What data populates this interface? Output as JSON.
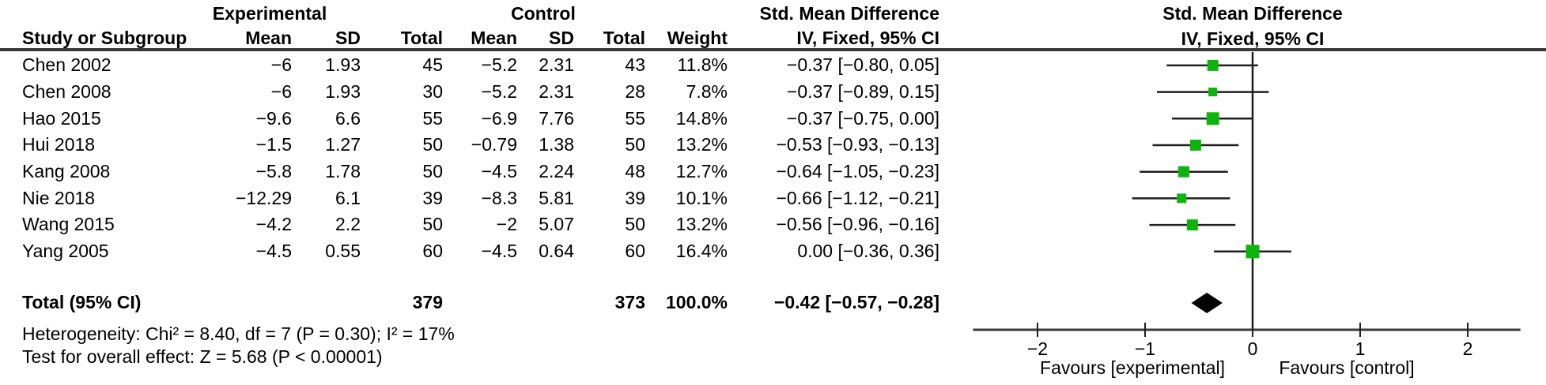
{
  "headers": {
    "experimental": "Experimental",
    "control": "Control",
    "smd_text_col": "Std. Mean Difference",
    "smd_plot_col": "Std. Mean Difference",
    "study": "Study or Subgroup",
    "mean": "Mean",
    "sd": "SD",
    "total": "Total",
    "mean2": "Mean",
    "sd2": "SD",
    "total2": "Total",
    "weight": "Weight",
    "ci_text_col": "IV, Fixed, 95% CI",
    "ci_plot_col": "IV, Fixed, 95% CI"
  },
  "colors": {
    "marker_green": "#0eb30e",
    "diamond_black": "#000000",
    "ci_line": "#1f1f1f",
    "axis_gray": "#3a3a3a"
  },
  "chart_data": {
    "type": "forest",
    "effect_measure": "Std. Mean Difference",
    "method": "IV, Fixed, 95% CI",
    "studies": [
      {
        "study": "Chen 2002",
        "exp_mean": "−6",
        "exp_sd": "1.93",
        "exp_total": "45",
        "ctl_mean": "−5.2",
        "ctl_sd": "2.31",
        "ctl_total": "43",
        "weight": "11.8%",
        "weight_pct": 11.8,
        "ci_label": "−0.37 [−0.80, 0.05]",
        "est": -0.37,
        "lo": -0.8,
        "hi": 0.05
      },
      {
        "study": "Chen 2008",
        "exp_mean": "−6",
        "exp_sd": "1.93",
        "exp_total": "30",
        "ctl_mean": "−5.2",
        "ctl_sd": "2.31",
        "ctl_total": "28",
        "weight": "7.8%",
        "weight_pct": 7.8,
        "ci_label": "−0.37 [−0.89, 0.15]",
        "est": -0.37,
        "lo": -0.89,
        "hi": 0.15
      },
      {
        "study": "Hao 2015",
        "exp_mean": "−9.6",
        "exp_sd": "6.6",
        "exp_total": "55",
        "ctl_mean": "−6.9",
        "ctl_sd": "7.76",
        "ctl_total": "55",
        "weight": "14.8%",
        "weight_pct": 14.8,
        "ci_label": "−0.37 [−0.75, 0.00]",
        "est": -0.37,
        "lo": -0.75,
        "hi": 0.0
      },
      {
        "study": "Hui 2018",
        "exp_mean": "−1.5",
        "exp_sd": "1.27",
        "exp_total": "50",
        "ctl_mean": "−0.79",
        "ctl_sd": "1.38",
        "ctl_total": "50",
        "weight": "13.2%",
        "weight_pct": 13.2,
        "ci_label": "−0.53 [−0.93, −0.13]",
        "est": -0.53,
        "lo": -0.93,
        "hi": -0.13
      },
      {
        "study": "Kang 2008",
        "exp_mean": "−5.8",
        "exp_sd": "1.78",
        "exp_total": "50",
        "ctl_mean": "−4.5",
        "ctl_sd": "2.24",
        "ctl_total": "48",
        "weight": "12.7%",
        "weight_pct": 12.7,
        "ci_label": "−0.64 [−1.05, −0.23]",
        "est": -0.64,
        "lo": -1.05,
        "hi": -0.23
      },
      {
        "study": "Nie 2018",
        "exp_mean": "−12.29",
        "exp_sd": "6.1",
        "exp_total": "39",
        "ctl_mean": "−8.3",
        "ctl_sd": "5.81",
        "ctl_total": "39",
        "weight": "10.1%",
        "weight_pct": 10.1,
        "ci_label": "−0.66 [−1.12, −0.21]",
        "est": -0.66,
        "lo": -1.12,
        "hi": -0.21
      },
      {
        "study": "Wang 2015",
        "exp_mean": "−4.2",
        "exp_sd": "2.2",
        "exp_total": "50",
        "ctl_mean": "−2",
        "ctl_sd": "5.07",
        "ctl_total": "50",
        "weight": "13.2%",
        "weight_pct": 13.2,
        "ci_label": "−0.56 [−0.96, −0.16]",
        "est": -0.56,
        "lo": -0.96,
        "hi": -0.16
      },
      {
        "study": "Yang 2005",
        "exp_mean": "−4.5",
        "exp_sd": "0.55",
        "exp_total": "60",
        "ctl_mean": "−4.5",
        "ctl_sd": "0.64",
        "ctl_total": "60",
        "weight": "16.4%",
        "weight_pct": 16.4,
        "ci_label": "0.00 [−0.36, 0.36]",
        "est": 0.0,
        "lo": -0.36,
        "hi": 0.36
      }
    ],
    "total": {
      "label": "Total (95% CI)",
      "exp_total": "379",
      "ctl_total": "373",
      "weight": "100.0%",
      "ci_label": "−0.42 [−0.57, −0.28]",
      "est": -0.42,
      "lo": -0.57,
      "hi": -0.28
    },
    "heterogeneity": "Heterogeneity: Chi² = 8.40, df = 7 (P = 0.30); I² = 17%",
    "overall_effect": "Test for overall effect: Z = 5.68 (P < 0.00001)",
    "x_ticks": [
      -2,
      -1,
      0,
      1,
      2
    ],
    "x_range": [
      -2.6,
      2.49
    ],
    "favours_left": "Favours [experimental]",
    "favours_right": "Favours [control]",
    "legend_position": "bottom",
    "grid": false
  }
}
